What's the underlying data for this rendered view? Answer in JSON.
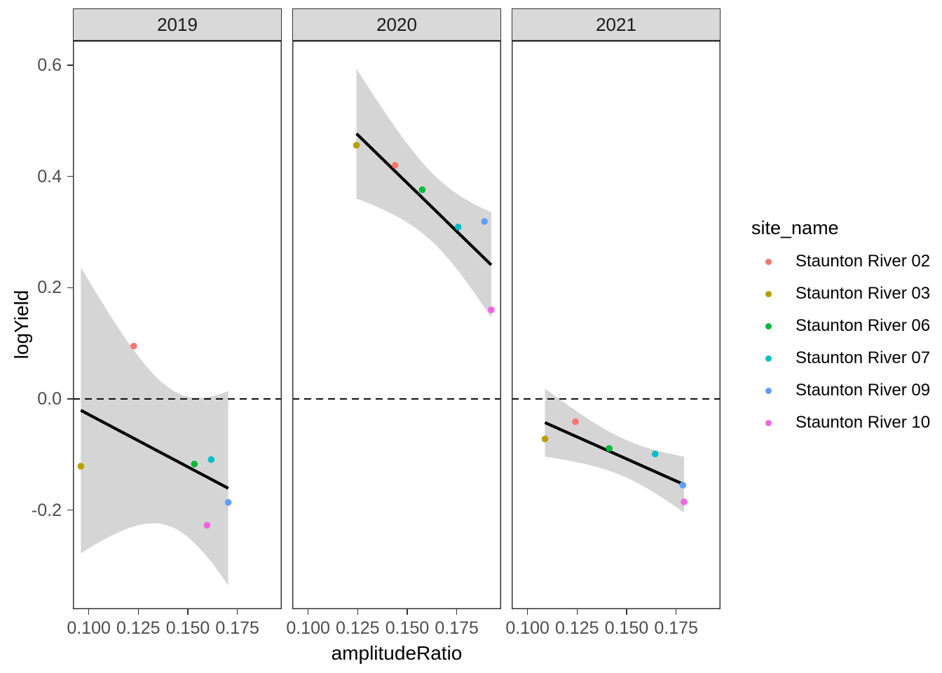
{
  "chart_data": {
    "type": "scatter",
    "title": "",
    "xlabel": "amplitudeRatio",
    "ylabel": "logYield",
    "legend_title": "site_name",
    "legend_position": "right",
    "grid": "off",
    "x_ticks": {
      "values": [
        0.1,
        0.125,
        0.15,
        0.175
      ],
      "labels": [
        "0.100",
        "0.125",
        "0.150",
        "0.175"
      ]
    },
    "y_ticks": {
      "values": [
        0.6,
        0.4,
        0.2,
        0.0,
        -0.2
      ],
      "labels": [
        "0.6",
        "0.4",
        "0.2",
        "0.0",
        "-0.2"
      ]
    },
    "x_domain": [
      0.092,
      0.1974
    ],
    "y_domain": [
      -0.378,
      0.644
    ],
    "reference_line": {
      "y": 0,
      "linetype": "dashed",
      "color": "#000000"
    },
    "smooth": {
      "method": "lm",
      "level": 0.95,
      "line_color": "#000000",
      "band_color": "#D5D5D5"
    },
    "sites": [
      {
        "name": "Staunton River 02",
        "color": "#F8766D"
      },
      {
        "name": "Staunton River 03",
        "color": "#B79F00"
      },
      {
        "name": "Staunton River 06",
        "color": "#00BA38"
      },
      {
        "name": "Staunton River 07",
        "color": "#00BFC4"
      },
      {
        "name": "Staunton River 09",
        "color": "#619CFF"
      },
      {
        "name": "Staunton River 10",
        "color": "#F564E2"
      }
    ],
    "facets": [
      {
        "label": "2019",
        "points": [
          {
            "site": "Staunton River 02",
            "x": 0.1227,
            "y": 0.095
          },
          {
            "site": "Staunton River 03",
            "x": 0.096,
            "y": -0.121
          },
          {
            "site": "Staunton River 06",
            "x": 0.1533,
            "y": -0.117
          },
          {
            "site": "Staunton River 07",
            "x": 0.1618,
            "y": -0.109
          },
          {
            "site": "Staunton River 09",
            "x": 0.1704,
            "y": -0.186
          },
          {
            "site": "Staunton River 10",
            "x": 0.1597,
            "y": -0.227
          }
        ]
      },
      {
        "label": "2020",
        "points": [
          {
            "site": "Staunton River 02",
            "x": 0.1439,
            "y": 0.42
          },
          {
            "site": "Staunton River 03",
            "x": 0.1244,
            "y": 0.456
          },
          {
            "site": "Staunton River 06",
            "x": 0.1576,
            "y": 0.376
          },
          {
            "site": "Staunton River 07",
            "x": 0.1757,
            "y": 0.309
          },
          {
            "site": "Staunton River 09",
            "x": 0.189,
            "y": 0.319
          },
          {
            "site": "Staunton River 10",
            "x": 0.1924,
            "y": 0.16
          }
        ]
      },
      {
        "label": "2021",
        "points": [
          {
            "site": "Staunton River 02",
            "x": 0.1242,
            "y": -0.041
          },
          {
            "site": "Staunton River 03",
            "x": 0.1088,
            "y": -0.072
          },
          {
            "site": "Staunton River 06",
            "x": 0.1412,
            "y": -0.089
          },
          {
            "site": "Staunton River 07",
            "x": 0.1644,
            "y": -0.099
          },
          {
            "site": "Staunton River 09",
            "x": 0.1784,
            "y": -0.155
          },
          {
            "site": "Staunton River 10",
            "x": 0.179,
            "y": -0.185
          }
        ]
      }
    ],
    "theme": {
      "strip_bg": "#D9D9D9",
      "panel_bg": "#FFFFFF",
      "border_color": "#333333",
      "tick_label_color": "#4D4D4D",
      "text_color": "#000000"
    }
  }
}
